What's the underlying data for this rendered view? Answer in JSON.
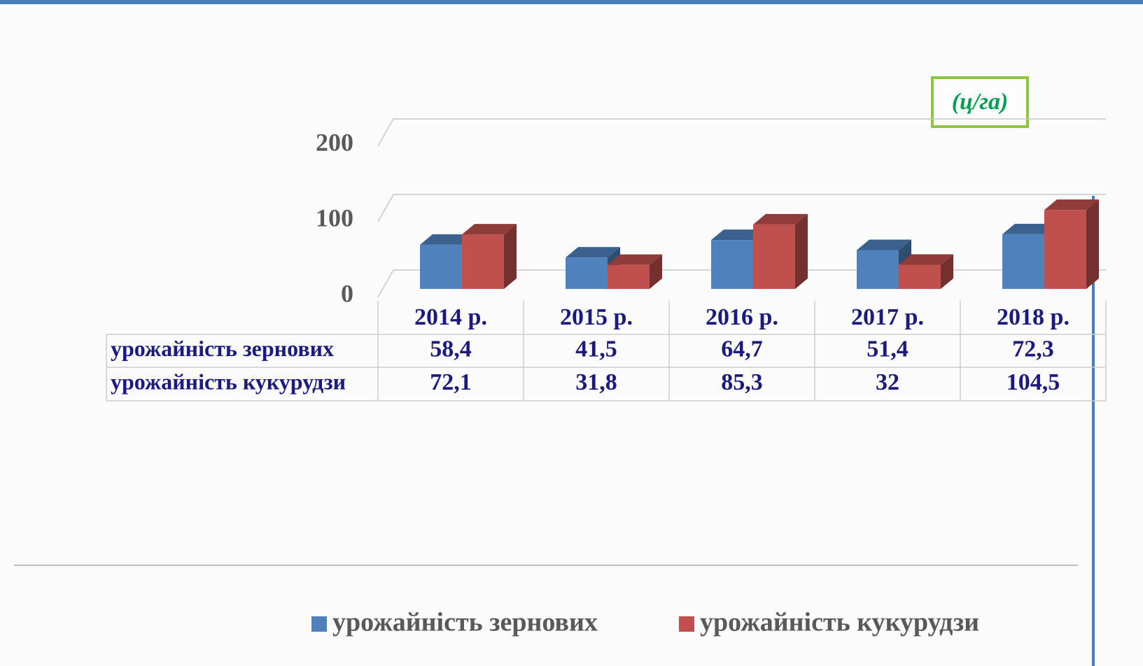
{
  "chart_data": {
    "type": "bar",
    "unit": "(ц/га)",
    "categories": [
      "2014 р.",
      "2015 р.",
      "2016 р.",
      "2017 р.",
      "2018 р."
    ],
    "series": [
      {
        "name": "урожайність зернових",
        "color": "#4f81bd",
        "values": [
          58.4,
          41.5,
          64.7,
          51.4,
          72.3
        ],
        "value_labels": [
          "58,4",
          "41,5",
          "64,7",
          "51,4",
          "72,3"
        ]
      },
      {
        "name": "урожайність кукурудзи",
        "color": "#c0504d",
        "values": [
          72.1,
          31.8,
          85.3,
          32,
          104.5
        ],
        "value_labels": [
          "72,1",
          "31,8",
          "85,3",
          "32",
          "104,5"
        ]
      }
    ],
    "ylim": [
      0,
      200
    ],
    "yticks": [
      0,
      100,
      200
    ],
    "grid": true,
    "legend": "bottom"
  }
}
